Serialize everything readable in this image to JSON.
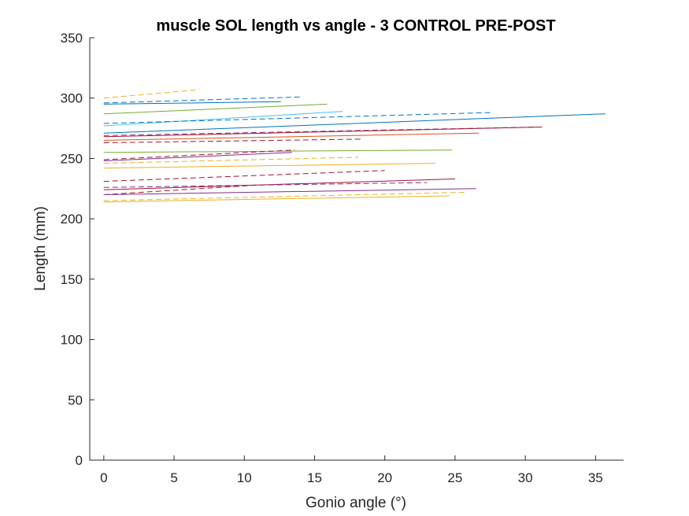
{
  "chart_data": {
    "type": "line",
    "title": "muscle SOL length vs angle - 3 CONTROL PRE-POST",
    "xlabel": "Gonio angle (°)",
    "ylabel": "Length (mm)",
    "xlim": [
      -1,
      37
    ],
    "ylim": [
      0,
      350
    ],
    "xticks": [
      "0",
      "5",
      "10",
      "15",
      "20",
      "25",
      "30",
      "35"
    ],
    "xtick_values": [
      0,
      5,
      10,
      15,
      20,
      25,
      30,
      35
    ],
    "yticks": [
      "0",
      "50",
      "100",
      "150",
      "200",
      "250",
      "300",
      "350"
    ],
    "ytick_values": [
      0,
      50,
      100,
      150,
      200,
      250,
      300,
      350
    ],
    "grid": false,
    "legend": "none",
    "colors": {
      "blue": "#0072BD",
      "orange": "#D95319",
      "yellow": "#EDB120",
      "purple": "#7E2F8E",
      "green": "#77AC30",
      "cyan": "#4DBEEE",
      "red": "#A2142F"
    },
    "series": [
      {
        "color": "yellow",
        "dashed": true,
        "x": [
          0,
          6.8
        ],
        "y": [
          300,
          307
        ]
      },
      {
        "color": "blue",
        "dashed": true,
        "x": [
          0,
          14.1
        ],
        "y": [
          296,
          301
        ]
      },
      {
        "color": "blue",
        "dashed": false,
        "x": [
          0,
          12.6
        ],
        "y": [
          295,
          297
        ]
      },
      {
        "color": "green",
        "dashed": false,
        "x": [
          0,
          15.9
        ],
        "y": [
          287,
          295
        ]
      },
      {
        "color": "cyan",
        "dashed": false,
        "x": [
          0,
          17.0
        ],
        "y": [
          277,
          289
        ]
      },
      {
        "color": "blue",
        "dashed": true,
        "x": [
          0,
          27.5
        ],
        "y": [
          279,
          288
        ]
      },
      {
        "color": "blue",
        "dashed": false,
        "x": [
          0,
          35.7
        ],
        "y": [
          271,
          287
        ]
      },
      {
        "color": "purple",
        "dashed": true,
        "x": [
          0,
          31.0
        ],
        "y": [
          269,
          276
        ]
      },
      {
        "color": "red",
        "dashed": false,
        "x": [
          0,
          31.2
        ],
        "y": [
          268,
          276
        ]
      },
      {
        "color": "orange",
        "dashed": false,
        "x": [
          0,
          26.7
        ],
        "y": [
          265,
          271
        ]
      },
      {
        "color": "red",
        "dashed": true,
        "x": [
          0,
          18.4
        ],
        "y": [
          263,
          266
        ]
      },
      {
        "color": "green",
        "dashed": false,
        "x": [
          0,
          24.8
        ],
        "y": [
          255,
          257
        ]
      },
      {
        "color": "red",
        "dashed": true,
        "x": [
          0,
          13.6
        ],
        "y": [
          249,
          257
        ]
      },
      {
        "color": "purple",
        "dashed": false,
        "x": [
          0,
          13.4
        ],
        "y": [
          248,
          255
        ]
      },
      {
        "color": "yellow",
        "dashed": true,
        "x": [
          0,
          18.1
        ],
        "y": [
          246,
          251
        ]
      },
      {
        "color": "yellow",
        "dashed": false,
        "x": [
          0,
          23.6
        ],
        "y": [
          242,
          246
        ]
      },
      {
        "color": "red",
        "dashed": true,
        "x": [
          0,
          20.0
        ],
        "y": [
          231,
          240
        ]
      },
      {
        "color": "red",
        "dashed": false,
        "x": [
          0,
          25.0
        ],
        "y": [
          224,
          233
        ]
      },
      {
        "color": "purple",
        "dashed": true,
        "x": [
          0,
          23.0
        ],
        "y": [
          226,
          230
        ]
      },
      {
        "color": "red",
        "dashed": true,
        "x": [
          0,
          11.0
        ],
        "y": [
          220,
          228
        ]
      },
      {
        "color": "purple",
        "dashed": false,
        "x": [
          0,
          26.5
        ],
        "y": [
          220,
          225
        ]
      },
      {
        "color": "yellow",
        "dashed": true,
        "x": [
          0,
          25.8
        ],
        "y": [
          215,
          222
        ]
      },
      {
        "color": "yellow",
        "dashed": false,
        "x": [
          0,
          24.6
        ],
        "y": [
          214,
          219
        ]
      }
    ]
  }
}
